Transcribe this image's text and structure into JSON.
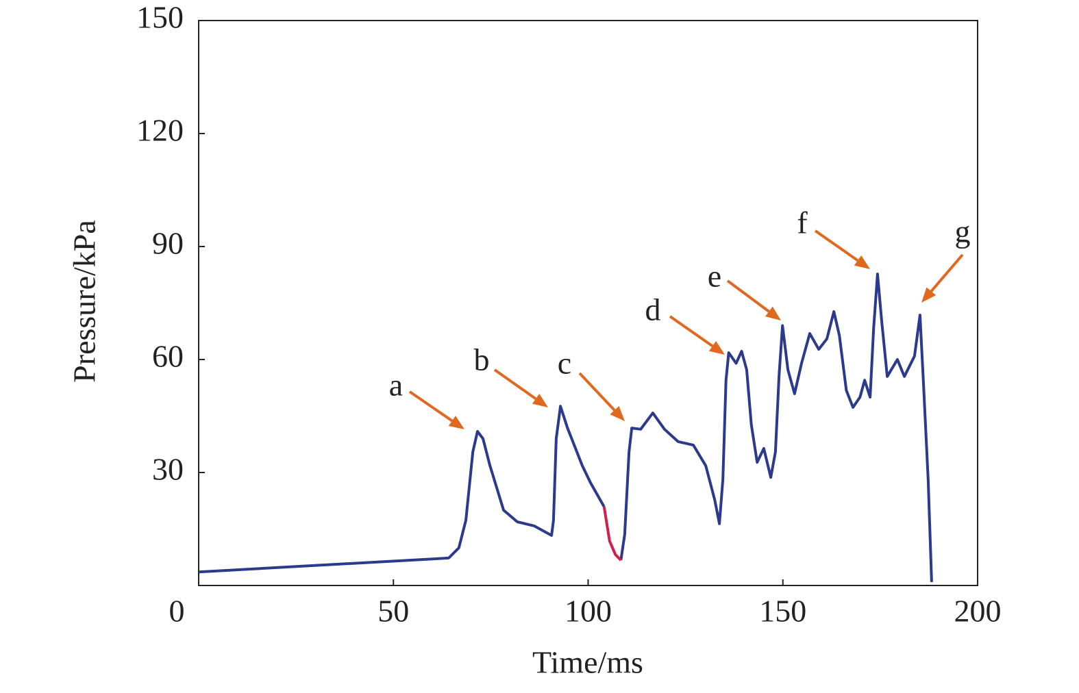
{
  "chart_data": {
    "type": "line",
    "xlabel": "Time/ms",
    "ylabel": "Pressure/kPa",
    "xlim": [
      0,
      200
    ],
    "ylim": [
      0,
      150
    ],
    "xticks": [
      0,
      50,
      100,
      150,
      200
    ],
    "yticks": [
      30,
      60,
      90,
      120,
      150
    ],
    "x": [
      0,
      64.2,
      66.8,
      68.6,
      70.4,
      71.6,
      73,
      74.8,
      78.3,
      81.8,
      86.2,
      90.6,
      91.1,
      91.8,
      92.9,
      94.7,
      98.5,
      100.6,
      104.1,
      105.5,
      107,
      108.4,
      109.4,
      110.5,
      111.2,
      113.5,
      116.6,
      119.6,
      123.1,
      127,
      130.2,
      132.5,
      133.7,
      134.6,
      135.4,
      136.1,
      138,
      139.4,
      140.7,
      141.9,
      143.4,
      145.1,
      146.9,
      148.1,
      149,
      149.9,
      151.3,
      153,
      154.8,
      156.9,
      159.2,
      161.3,
      163.1,
      164.5,
      166.3,
      168,
      169.8,
      171,
      172.4,
      173.3,
      174.3,
      175.4,
      176.8,
      179.4,
      181.2,
      183.8,
      185.2,
      186.1,
      187.3,
      188.2
    ],
    "series": [
      {
        "color": "#2b3a8c",
        "values": [
          3.6,
          7.3,
          10,
          17.3,
          35.5,
          40.9,
          39,
          31.8,
          20,
          16.9,
          15.8,
          13.3,
          17.3,
          39,
          47.6,
          41.8,
          31.8,
          27.3,
          20.9,
          null,
          null,
          6.7,
          13.6,
          35.5,
          41.8,
          41.5,
          45.8,
          41.5,
          38.2,
          37.3,
          31.8,
          22.7,
          16.4,
          28.2,
          54.5,
          61.8,
          59,
          62.2,
          57.3,
          42.7,
          32.7,
          36.4,
          28.7,
          35.5,
          55.5,
          69,
          57.3,
          50.9,
          59,
          66.9,
          62.7,
          65.5,
          72.7,
          66.4,
          51.8,
          47.3,
          50,
          54.5,
          50,
          68.2,
          82.7,
          70,
          55.5,
          60,
          55.5,
          60.9,
          71.8,
          53.6,
          28.2,
          0.9
        ]
      },
      {
        "color": "#d0204a",
        "values": [
          null,
          null,
          null,
          null,
          null,
          null,
          null,
          null,
          null,
          null,
          null,
          null,
          null,
          null,
          null,
          null,
          null,
          null,
          20.9,
          11.8,
          8.2,
          6.7,
          null,
          null,
          null,
          null,
          null,
          null,
          null,
          null,
          null,
          null,
          null,
          null,
          null,
          null,
          null,
          null,
          null,
          null,
          null,
          null,
          null,
          null,
          null,
          null,
          null,
          null,
          null,
          null,
          null,
          null,
          null,
          null,
          null,
          null,
          null,
          null,
          null,
          null,
          null,
          null,
          null,
          null,
          null,
          null,
          null,
          null,
          null,
          null
        ]
      }
    ],
    "annotations": [
      "a",
      "b",
      "c",
      "d",
      "e",
      "f",
      "g"
    ]
  }
}
